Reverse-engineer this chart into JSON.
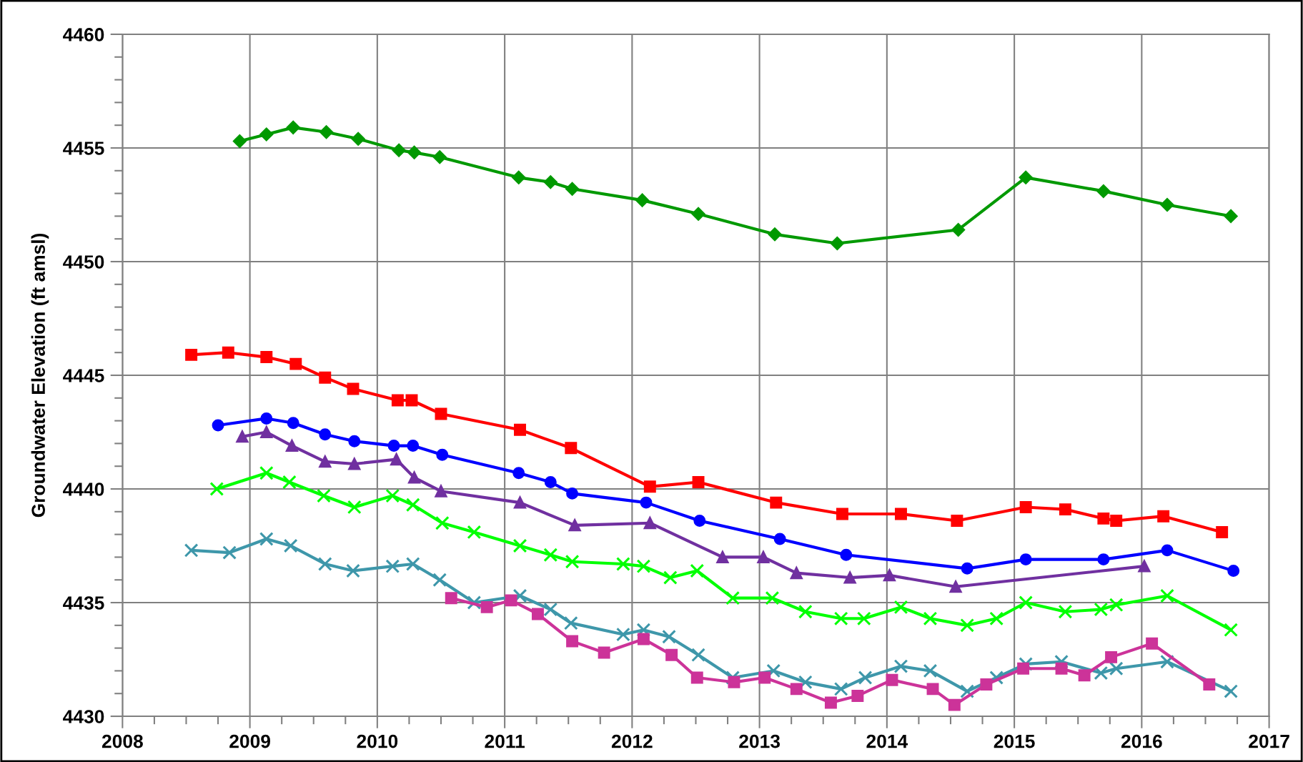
{
  "chart_data": {
    "type": "line",
    "ylabel": "Groundwater Elevation (ft amsl)",
    "xlim": [
      2008,
      2017
    ],
    "xticks": [
      2008,
      2009,
      2010,
      2011,
      2012,
      2013,
      2014,
      2015,
      2016,
      2017
    ],
    "ylim": [
      4430,
      4460
    ],
    "yticks": [
      4430,
      4435,
      4440,
      4445,
      4450,
      4455,
      4460
    ],
    "grid": true,
    "legend": false,
    "line_style": "solid",
    "series": [
      {
        "color": "#009900",
        "marker": "diamond",
        "x": [
          2008.92,
          2009.13,
          2009.34,
          2009.6,
          2009.85,
          2010.17,
          2010.29,
          2010.49,
          2011.11,
          2011.36,
          2011.53,
          2012.08,
          2012.52,
          2013.12,
          2013.61,
          2014.56,
          2015.09,
          2015.7,
          2016.2,
          2016.7
        ],
        "values": [
          4455.3,
          4455.6,
          4455.9,
          4455.7,
          4455.4,
          4454.9,
          4454.8,
          4454.6,
          4453.7,
          4453.5,
          4453.2,
          4452.7,
          4452.1,
          4451.2,
          4450.8,
          4451.4,
          4453.7,
          4453.1,
          4452.5,
          4452.0
        ]
      },
      {
        "color": "#ff0000",
        "marker": "square",
        "x": [
          2008.54,
          2008.83,
          2009.13,
          2009.36,
          2009.59,
          2009.81,
          2010.16,
          2010.27,
          2010.5,
          2011.12,
          2011.52,
          2012.14,
          2012.52,
          2013.13,
          2013.65,
          2014.11,
          2014.55,
          2015.09,
          2015.4,
          2015.7,
          2015.8,
          2016.17,
          2016.63
        ],
        "values": [
          4445.9,
          4446.0,
          4445.8,
          4445.5,
          4444.9,
          4444.4,
          4443.9,
          4443.9,
          4443.3,
          4442.6,
          4441.8,
          4440.1,
          4440.3,
          4439.4,
          4438.9,
          4438.9,
          4438.6,
          4439.2,
          4439.1,
          4438.7,
          4438.6,
          4438.8,
          4438.1
        ]
      },
      {
        "color": "#0000ff",
        "marker": "circle",
        "x": [
          2008.75,
          2009.13,
          2009.34,
          2009.59,
          2009.82,
          2010.13,
          2010.28,
          2010.51,
          2011.11,
          2011.36,
          2011.53,
          2012.11,
          2012.53,
          2013.16,
          2013.68,
          2014.63,
          2015.09,
          2015.7,
          2016.2,
          2016.72
        ],
        "values": [
          4442.8,
          4443.1,
          4442.9,
          4442.4,
          4442.1,
          4441.9,
          4441.9,
          4441.5,
          4440.7,
          4440.3,
          4439.8,
          4439.4,
          4438.6,
          4437.8,
          4437.1,
          4436.5,
          4436.9,
          4436.9,
          4437.3,
          4436.4
        ]
      },
      {
        "color": "#7030a0",
        "marker": "triangle",
        "x": [
          2008.94,
          2009.13,
          2009.33,
          2009.59,
          2009.82,
          2010.15,
          2010.29,
          2010.5,
          2011.12,
          2011.55,
          2012.14,
          2012.71,
          2013.03,
          2013.29,
          2013.71,
          2014.02,
          2014.54,
          2016.02
        ],
        "values": [
          4442.3,
          4442.5,
          4441.9,
          4441.2,
          4441.1,
          4441.3,
          4440.5,
          4439.9,
          4439.4,
          4438.4,
          4438.5,
          4437.0,
          4437.0,
          4436.3,
          4436.1,
          4436.2,
          4435.7,
          4436.6
        ]
      },
      {
        "color": "#00ff00",
        "marker": "cross",
        "x": [
          2008.74,
          2009.13,
          2009.31,
          2009.58,
          2009.82,
          2010.12,
          2010.28,
          2010.51,
          2010.76,
          2011.12,
          2011.36,
          2011.53,
          2011.93,
          2012.09,
          2012.3,
          2012.51,
          2012.79,
          2013.1,
          2013.36,
          2013.64,
          2013.82,
          2014.11,
          2014.34,
          2014.63,
          2014.86,
          2015.09,
          2015.4,
          2015.68,
          2015.8,
          2016.2,
          2016.7
        ],
        "values": [
          4440.0,
          4440.7,
          4440.3,
          4439.7,
          4439.2,
          4439.7,
          4439.3,
          4438.5,
          4438.1,
          4437.5,
          4437.1,
          4436.8,
          4436.7,
          4436.6,
          4436.1,
          4436.4,
          4435.2,
          4435.2,
          4434.6,
          4434.3,
          4434.3,
          4434.8,
          4434.3,
          4434.0,
          4434.3,
          4435.0,
          4434.6,
          4434.7,
          4434.9,
          4435.3,
          4433.8
        ]
      },
      {
        "color": "#3e97aa",
        "marker": "cross",
        "x": [
          2008.54,
          2008.84,
          2009.13,
          2009.32,
          2009.59,
          2009.81,
          2010.12,
          2010.28,
          2010.49,
          2010.76,
          2011.12,
          2011.36,
          2011.52,
          2011.93,
          2012.09,
          2012.29,
          2012.52,
          2012.79,
          2013.11,
          2013.36,
          2013.64,
          2013.83,
          2014.11,
          2014.34,
          2014.63,
          2014.86,
          2015.09,
          2015.37,
          2015.68,
          2015.8,
          2016.2,
          2016.7
        ],
        "values": [
          4437.3,
          4437.2,
          4437.8,
          4437.5,
          4436.7,
          4436.4,
          4436.6,
          4436.7,
          4436.0,
          4435.0,
          4435.3,
          4434.7,
          4434.1,
          4433.6,
          4433.8,
          4433.5,
          4432.7,
          4431.7,
          4432.0,
          4431.5,
          4431.2,
          4431.7,
          4432.2,
          4432.0,
          4431.1,
          4431.7,
          4432.3,
          4432.4,
          4431.9,
          4432.1,
          4432.4,
          4431.1
        ]
      },
      {
        "color": "#cc3399",
        "marker": "square",
        "x": [
          2010.58,
          2010.86,
          2011.05,
          2011.26,
          2011.53,
          2011.78,
          2012.09,
          2012.31,
          2012.51,
          2012.8,
          2013.04,
          2013.29,
          2013.56,
          2013.77,
          2014.04,
          2014.36,
          2014.53,
          2014.78,
          2015.07,
          2015.37,
          2015.55,
          2015.76,
          2016.08,
          2016.53
        ],
        "values": [
          4435.2,
          4434.8,
          4435.1,
          4434.5,
          4433.3,
          4432.8,
          4433.4,
          4432.7,
          4431.7,
          4431.5,
          4431.7,
          4431.2,
          4430.6,
          4430.9,
          4431.6,
          4431.2,
          4430.5,
          4431.4,
          4432.1,
          4432.1,
          4431.8,
          4432.6,
          4433.2,
          4431.4
        ]
      }
    ]
  }
}
